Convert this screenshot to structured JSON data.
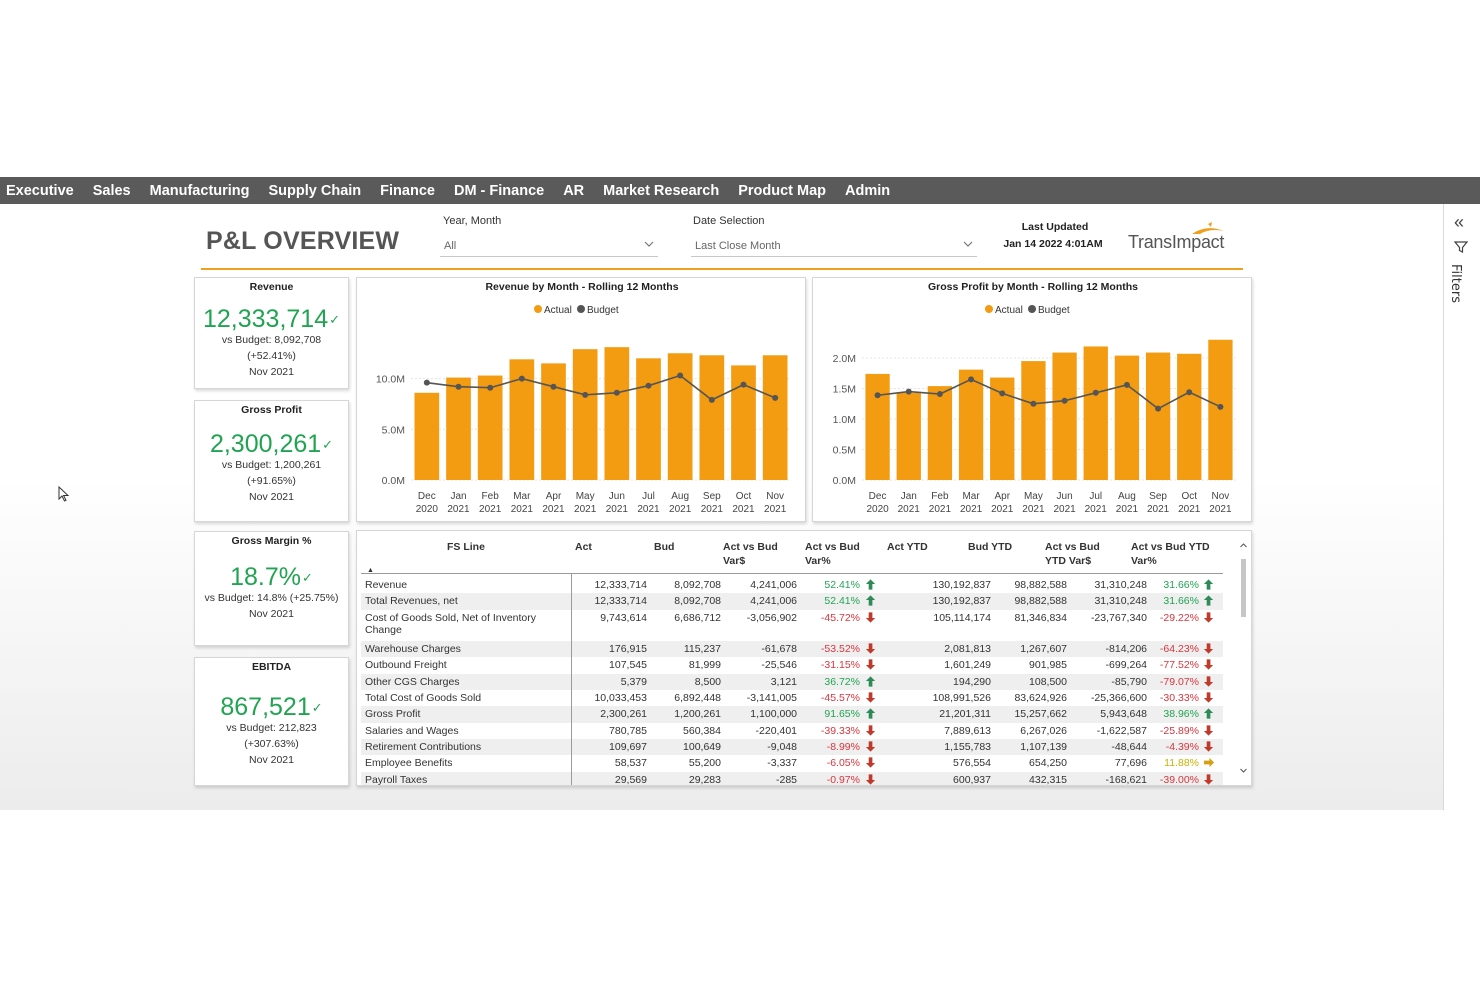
{
  "nav": {
    "items": [
      "Executive",
      "Sales",
      "Manufacturing",
      "Supply Chain",
      "Finance",
      "DM - Finance",
      "AR",
      "Market Research",
      "Product Map",
      "Admin"
    ]
  },
  "header": {
    "title": "P&L OVERVIEW",
    "slicer_year": {
      "label": "Year, Month",
      "value": "All"
    },
    "slicer_date": {
      "label": "Date Selection",
      "value": "Last Close Month"
    },
    "updated_label": "Last Updated",
    "updated_value": "Jan 14 2022 4:01AM",
    "logo_text": "TransImpact"
  },
  "filters_pane": {
    "label": "Filters"
  },
  "kpis": [
    {
      "title": "Revenue",
      "value": "12,333,714",
      "budget": "vs Budget: 8,092,708",
      "change": "(+52.41%)",
      "period": "Nov 2021"
    },
    {
      "title": "Gross Profit",
      "value": "2,300,261",
      "budget": "vs Budget: 1,200,261",
      "change": "(+91.65%)",
      "period": "Nov 2021"
    },
    {
      "title": "Gross Margin %",
      "value": "18.7%",
      "budget": "vs Budget: 14.8% (+25.75%)",
      "change": "",
      "period": "Nov 2021"
    },
    {
      "title": "EBITDA",
      "value": "867,521",
      "budget": "vs Budget: 212,823",
      "change": "(+307.63%)",
      "period": "Nov 2021"
    }
  ],
  "colors": {
    "actual": "#f39c12",
    "budget": "#555555",
    "green": "#21a452",
    "red": "#d9363e",
    "nav": "#5a5a5a",
    "accent": "#f0a020"
  },
  "chart_data": [
    {
      "type": "bar",
      "title": "Revenue by Month - Rolling 12 Months",
      "categories": [
        "Dec 2020",
        "Jan 2021",
        "Feb 2021",
        "Mar 2021",
        "Apr 2021",
        "May 2021",
        "Jun 2021",
        "Jul 2021",
        "Aug 2021",
        "Sep 2021",
        "Oct 2021",
        "Nov 2021"
      ],
      "series": [
        {
          "name": "Actual",
          "kind": "bar",
          "values": [
            8.6,
            10.1,
            10.3,
            11.9,
            11.5,
            12.9,
            13.1,
            12.0,
            12.5,
            12.3,
            11.3,
            12.3
          ]
        },
        {
          "name": "Budget",
          "kind": "line",
          "values": [
            9.6,
            9.2,
            9.1,
            10.0,
            9.2,
            8.4,
            8.6,
            9.3,
            10.3,
            7.9,
            9.4,
            8.1
          ]
        }
      ],
      "yticks": [
        "0.0M",
        "5.0M",
        "10.0M"
      ],
      "ylim": [
        0,
        14.2
      ],
      "legend": "top-center"
    },
    {
      "type": "bar",
      "title": "Gross Profit by Month - Rolling 12 Months",
      "categories": [
        "Dec 2020",
        "Jan 2021",
        "Feb 2021",
        "Mar 2021",
        "Apr 2021",
        "May 2021",
        "Jun 2021",
        "Jul 2021",
        "Aug 2021",
        "Sep 2021",
        "Oct 2021",
        "Nov 2021"
      ],
      "series": [
        {
          "name": "Actual",
          "kind": "bar",
          "values": [
            1.74,
            1.43,
            1.54,
            1.81,
            1.68,
            1.95,
            2.09,
            2.19,
            2.04,
            2.09,
            2.07,
            2.3
          ]
        },
        {
          "name": "Budget",
          "kind": "line",
          "values": [
            1.39,
            1.45,
            1.41,
            1.65,
            1.42,
            1.25,
            1.3,
            1.43,
            1.56,
            1.17,
            1.44,
            1.2
          ]
        }
      ],
      "yticks": [
        "0.0M",
        "0.5M",
        "1.0M",
        "1.5M",
        "2.0M"
      ],
      "ylim": [
        0,
        2.46
      ],
      "legend": "top-center"
    }
  ],
  "table": {
    "headers": [
      {
        "l1": "FS Line",
        "l2": ""
      },
      {
        "l1": "Act",
        "l2": ""
      },
      {
        "l1": "Bud",
        "l2": ""
      },
      {
        "l1": "Act vs Bud",
        "l2": "Var$"
      },
      {
        "l1": "Act vs Bud",
        "l2": "Var%"
      },
      {
        "l1": "Act YTD",
        "l2": ""
      },
      {
        "l1": "Bud YTD",
        "l2": ""
      },
      {
        "l1": "Act vs Bud",
        "l2": "YTD Var$"
      },
      {
        "l1": "Act vs Bud YTD",
        "l2": "Var%"
      }
    ],
    "rows": [
      {
        "line": "Revenue",
        "line2": "",
        "act": "12,333,714",
        "bud": "8,092,708",
        "var": "4,241,006",
        "pct": "52.41%",
        "pct_dir": "up",
        "act_ytd": "130,192,837",
        "bud_ytd": "98,882,588",
        "var_ytd": "31,310,248",
        "pct_ytd": "31.66%",
        "pct_ytd_dir": "up"
      },
      {
        "line": "Total Revenues, net",
        "line2": "",
        "act": "12,333,714",
        "bud": "8,092,708",
        "var": "4,241,006",
        "pct": "52.41%",
        "pct_dir": "up",
        "act_ytd": "130,192,837",
        "bud_ytd": "98,882,588",
        "var_ytd": "31,310,248",
        "pct_ytd": "31.66%",
        "pct_ytd_dir": "up"
      },
      {
        "line": "Cost of Goods Sold, Net of Inventory",
        "line2": "Change",
        "act": "9,743,614",
        "bud": "6,686,712",
        "var": "-3,056,902",
        "pct": "-45.72%",
        "pct_dir": "down",
        "act_ytd": "105,114,174",
        "bud_ytd": "81,346,834",
        "var_ytd": "-23,767,340",
        "pct_ytd": "-29.22%",
        "pct_ytd_dir": "down"
      },
      {
        "line": "Warehouse Charges",
        "line2": "",
        "act": "176,915",
        "bud": "115,237",
        "var": "-61,678",
        "pct": "-53.52%",
        "pct_dir": "down",
        "act_ytd": "2,081,813",
        "bud_ytd": "1,267,607",
        "var_ytd": "-814,206",
        "pct_ytd": "-64.23%",
        "pct_ytd_dir": "down"
      },
      {
        "line": "Outbound Freight",
        "line2": "",
        "act": "107,545",
        "bud": "81,999",
        "var": "-25,546",
        "pct": "-31.15%",
        "pct_dir": "down",
        "act_ytd": "1,601,249",
        "bud_ytd": "901,985",
        "var_ytd": "-699,264",
        "pct_ytd": "-77.52%",
        "pct_ytd_dir": "down"
      },
      {
        "line": "Other CGS Charges",
        "line2": "",
        "act": "5,379",
        "bud": "8,500",
        "var": "3,121",
        "pct": "36.72%",
        "pct_dir": "up",
        "act_ytd": "194,290",
        "bud_ytd": "108,500",
        "var_ytd": "-85,790",
        "pct_ytd": "-79.07%",
        "pct_ytd_dir": "down"
      },
      {
        "line": "Total Cost of Goods Sold",
        "line2": "",
        "act": "10,033,453",
        "bud": "6,892,448",
        "var": "-3,141,005",
        "pct": "-45.57%",
        "pct_dir": "down",
        "act_ytd": "108,991,526",
        "bud_ytd": "83,624,926",
        "var_ytd": "-25,366,600",
        "pct_ytd": "-30.33%",
        "pct_ytd_dir": "down"
      },
      {
        "line": "Gross Profit",
        "line2": "",
        "act": "2,300,261",
        "bud": "1,200,261",
        "var": "1,100,000",
        "pct": "91.65%",
        "pct_dir": "up",
        "act_ytd": "21,201,311",
        "bud_ytd": "15,257,662",
        "var_ytd": "5,943,648",
        "pct_ytd": "38.96%",
        "pct_ytd_dir": "up"
      },
      {
        "line": "Salaries and Wages",
        "line2": "",
        "act": "780,785",
        "bud": "560,384",
        "var": "-220,401",
        "pct": "-39.33%",
        "pct_dir": "down",
        "act_ytd": "7,889,613",
        "bud_ytd": "6,267,026",
        "var_ytd": "-1,622,587",
        "pct_ytd": "-25.89%",
        "pct_ytd_dir": "down"
      },
      {
        "line": "Retirement Contributions",
        "line2": "",
        "act": "109,697",
        "bud": "100,649",
        "var": "-9,048",
        "pct": "-8.99%",
        "pct_dir": "down",
        "act_ytd": "1,155,783",
        "bud_ytd": "1,107,139",
        "var_ytd": "-48,644",
        "pct_ytd": "-4.39%",
        "pct_ytd_dir": "down"
      },
      {
        "line": "Employee Benefits",
        "line2": "",
        "act": "58,537",
        "bud": "55,200",
        "var": "-3,337",
        "pct": "-6.05%",
        "pct_dir": "down",
        "act_ytd": "576,554",
        "bud_ytd": "654,250",
        "var_ytd": "77,696",
        "pct_ytd": "11.88%",
        "pct_ytd_dir": "right"
      },
      {
        "line": "Payroll Taxes",
        "line2": "",
        "act": "29,569",
        "bud": "29,283",
        "var": "-285",
        "pct": "-0.97%",
        "pct_dir": "down",
        "act_ytd": "600,937",
        "bud_ytd": "432,315",
        "var_ytd": "-168,621",
        "pct_ytd": "-39.00%",
        "pct_ytd_dir": "down"
      }
    ]
  }
}
